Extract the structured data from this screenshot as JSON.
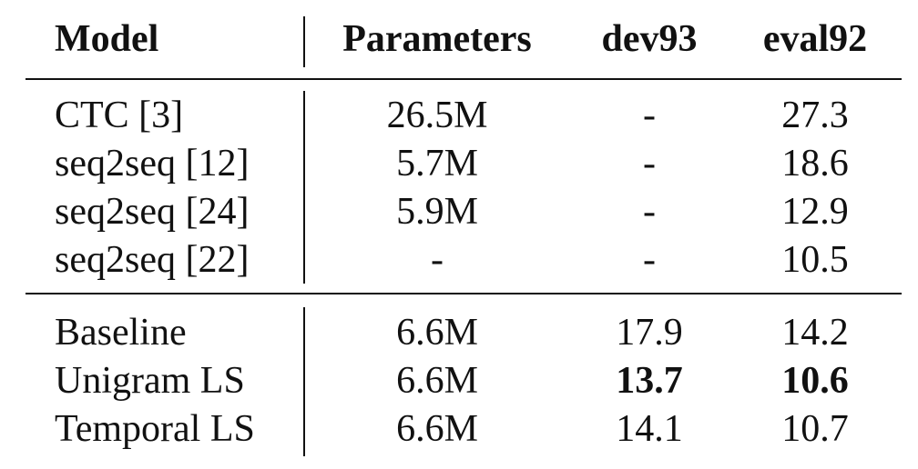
{
  "table": {
    "headers": {
      "model": "Model",
      "parameters": "Parameters",
      "dev93": "dev93",
      "eval92": "eval92"
    },
    "group1": [
      {
        "model": "CTC [3]",
        "parameters": "26.5M",
        "dev93": "-",
        "eval92": "27.3"
      },
      {
        "model": "seq2seq [12]",
        "parameters": "5.7M",
        "dev93": "-",
        "eval92": "18.6"
      },
      {
        "model": "seq2seq [24]",
        "parameters": "5.9M",
        "dev93": "-",
        "eval92": "12.9"
      },
      {
        "model": "seq2seq [22]",
        "parameters": "-",
        "dev93": "-",
        "eval92": "10.5"
      }
    ],
    "group2": [
      {
        "model": "Baseline",
        "parameters": "6.6M",
        "dev93": "17.9",
        "eval92": "14.2"
      },
      {
        "model": "Unigram LS",
        "parameters": "6.6M",
        "dev93": "13.7",
        "eval92": "10.6",
        "bold": [
          "dev93",
          "eval92"
        ]
      },
      {
        "model": "Temporal LS",
        "parameters": "6.6M",
        "dev93": "14.1",
        "eval92": "10.7"
      }
    ]
  }
}
